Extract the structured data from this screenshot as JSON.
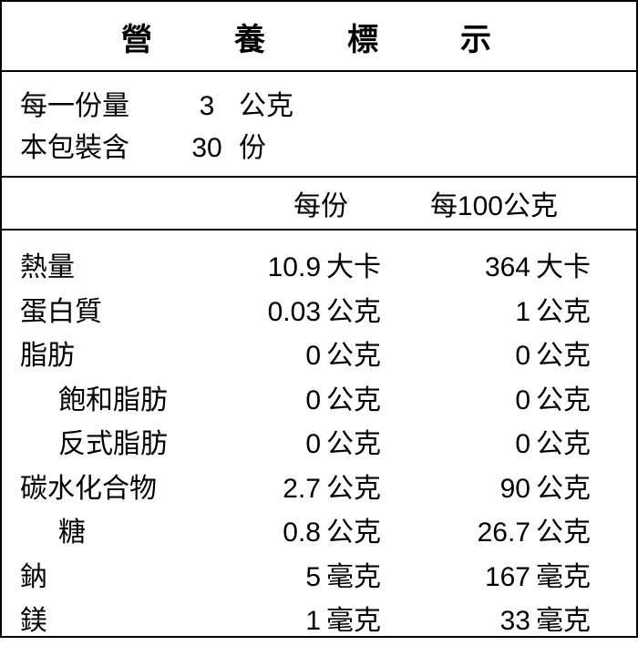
{
  "title": "營　養　標　示",
  "serving": {
    "size_label": "每一份量",
    "size_value": "3",
    "size_unit": "公克",
    "count_label": "本包裝含",
    "count_value": "30",
    "count_unit": "份"
  },
  "columns": {
    "per_serving": "每份",
    "per_100g": "每100公克"
  },
  "nutrients": [
    {
      "name": "熱量",
      "indent": false,
      "per_serving_value": "10.9",
      "per_serving_unit": "大卡",
      "per_100g_value": "364",
      "per_100g_unit": "大卡"
    },
    {
      "name": "蛋白質",
      "indent": false,
      "per_serving_value": "0.03",
      "per_serving_unit": "公克",
      "per_100g_value": "1",
      "per_100g_unit": "公克"
    },
    {
      "name": "脂肪",
      "indent": false,
      "per_serving_value": "0",
      "per_serving_unit": "公克",
      "per_100g_value": "0",
      "per_100g_unit": "公克"
    },
    {
      "name": "飽和脂肪",
      "indent": true,
      "per_serving_value": "0",
      "per_serving_unit": "公克",
      "per_100g_value": "0",
      "per_100g_unit": "公克"
    },
    {
      "name": "反式脂肪",
      "indent": true,
      "per_serving_value": "0",
      "per_serving_unit": "公克",
      "per_100g_value": "0",
      "per_100g_unit": "公克"
    },
    {
      "name": "碳水化合物",
      "indent": false,
      "per_serving_value": "2.7",
      "per_serving_unit": "公克",
      "per_100g_value": "90",
      "per_100g_unit": "公克"
    },
    {
      "name": "糖",
      "indent": true,
      "per_serving_value": "0.8",
      "per_serving_unit": "公克",
      "per_100g_value": "26.7",
      "per_100g_unit": "公克"
    },
    {
      "name": "鈉",
      "indent": false,
      "per_serving_value": "5",
      "per_serving_unit": "毫克",
      "per_100g_value": "167",
      "per_100g_unit": "毫克"
    },
    {
      "name": "鎂",
      "indent": false,
      "per_serving_value": "1",
      "per_serving_unit": "毫克",
      "per_100g_value": "33",
      "per_100g_unit": "毫克"
    }
  ],
  "style": {
    "border_color": "#000000",
    "background_color": "#ffffff",
    "text_color": "#000000",
    "title_fontsize": 34,
    "body_fontsize": 30
  }
}
